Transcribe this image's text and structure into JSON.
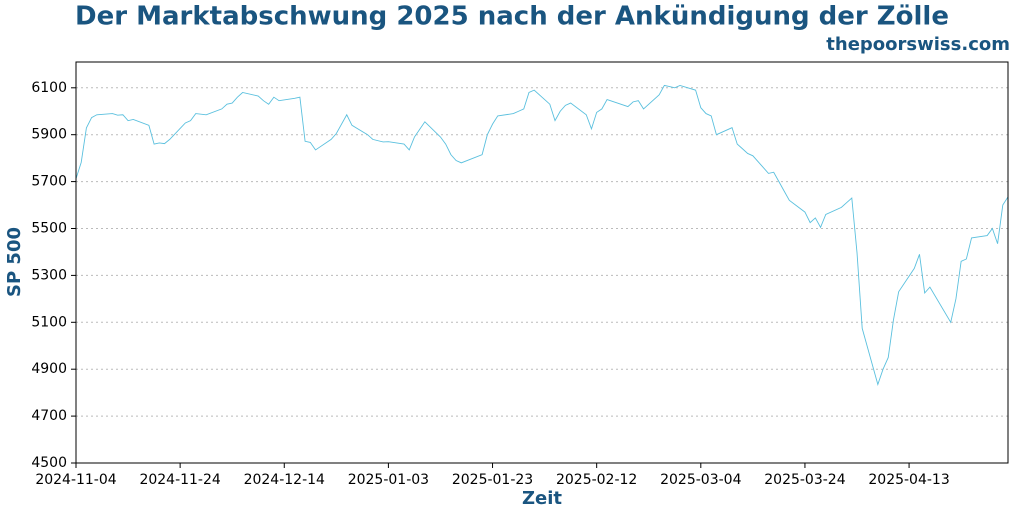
{
  "chart_data": {
    "type": "line",
    "title": "Der Marktabschwung 2025 nach der Ankündigung der Zölle",
    "annotation": "thepoorswiss.com",
    "xlabel": "Zeit",
    "ylabel": "SP 500",
    "color": "#5bc0de",
    "x": [
      "2024-11-04",
      "2024-11-05",
      "2024-11-06",
      "2024-11-07",
      "2024-11-08",
      "2024-11-11",
      "2024-11-12",
      "2024-11-13",
      "2024-11-14",
      "2024-11-15",
      "2024-11-18",
      "2024-11-19",
      "2024-11-20",
      "2024-11-21",
      "2024-11-22",
      "2024-11-25",
      "2024-11-26",
      "2024-11-27",
      "2024-11-29",
      "2024-12-02",
      "2024-12-03",
      "2024-12-04",
      "2024-12-05",
      "2024-12-06",
      "2024-12-09",
      "2024-12-10",
      "2024-12-11",
      "2024-12-12",
      "2024-12-13",
      "2024-12-16",
      "2024-12-17",
      "2024-12-18",
      "2024-12-19",
      "2024-12-20",
      "2024-12-23",
      "2024-12-24",
      "2024-12-26",
      "2024-12-27",
      "2024-12-30",
      "2024-12-31",
      "2025-01-02",
      "2025-01-03",
      "2025-01-06",
      "2025-01-07",
      "2025-01-08",
      "2025-01-10",
      "2025-01-13",
      "2025-01-14",
      "2025-01-15",
      "2025-01-16",
      "2025-01-17",
      "2025-01-21",
      "2025-01-22",
      "2025-01-23",
      "2025-01-24",
      "2025-01-27",
      "2025-01-28",
      "2025-01-29",
      "2025-01-30",
      "2025-01-31",
      "2025-02-03",
      "2025-02-04",
      "2025-02-05",
      "2025-02-06",
      "2025-02-07",
      "2025-02-10",
      "2025-02-11",
      "2025-02-12",
      "2025-02-13",
      "2025-02-14",
      "2025-02-18",
      "2025-02-19",
      "2025-02-20",
      "2025-02-21",
      "2025-02-24",
      "2025-02-25",
      "2025-02-26",
      "2025-02-27",
      "2025-02-28",
      "2025-03-03",
      "2025-03-04",
      "2025-03-05",
      "2025-03-06",
      "2025-03-07",
      "2025-03-10",
      "2025-03-11",
      "2025-03-12",
      "2025-03-13",
      "2025-03-14",
      "2025-03-17",
      "2025-03-18",
      "2025-03-19",
      "2025-03-20",
      "2025-03-21",
      "2025-03-24",
      "2025-03-25",
      "2025-03-26",
      "2025-03-27",
      "2025-03-28",
      "2025-03-31",
      "2025-04-01",
      "2025-04-02",
      "2025-04-03",
      "2025-04-04",
      "2025-04-07",
      "2025-04-08",
      "2025-04-09",
      "2025-04-10",
      "2025-04-11",
      "2025-04-14",
      "2025-04-15",
      "2025-04-16",
      "2025-04-17",
      "2025-04-21",
      "2025-04-22",
      "2025-04-23",
      "2025-04-24",
      "2025-04-25",
      "2025-04-28",
      "2025-04-29",
      "2025-04-30",
      "2025-05-01",
      "2025-05-02"
    ],
    "values": [
      5712,
      5782,
      5929,
      5973,
      5985,
      5990,
      5983,
      5985,
      5960,
      5965,
      5940,
      5860,
      5865,
      5862,
      5880,
      5950,
      5960,
      5990,
      5985,
      6010,
      6030,
      6035,
      6060,
      6080,
      6065,
      6045,
      6030,
      6060,
      6045,
      6055,
      6060,
      5872,
      5867,
      5835,
      5880,
      5905,
      5985,
      5940,
      5900,
      5880,
      5869,
      5870,
      5860,
      5835,
      5890,
      5955,
      5890,
      5860,
      5815,
      5790,
      5780,
      5815,
      5900,
      5945,
      5980,
      5990,
      6000,
      6010,
      6080,
      6090,
      6030,
      5960,
      6000,
      6025,
      6035,
      5985,
      5925,
      5995,
      6010,
      6050,
      6020,
      6040,
      6045,
      6010,
      6070,
      6110,
      6105,
      6100,
      6110,
      6090,
      6015,
      5990,
      5980,
      5900,
      5930,
      5860,
      5840,
      5820,
      5810,
      5735,
      5740,
      5700,
      5660,
      5620,
      5570,
      5525,
      5545,
      5505,
      5560,
      5590,
      5610,
      5630,
      5397,
      5074,
      4835,
      4900,
      4950,
      5110,
      5230,
      5330,
      5390,
      5225,
      5250,
      5100,
      5200,
      5360,
      5370,
      5460,
      5470,
      5500,
      5435,
      5600,
      5635
    ],
    "xlim": [
      "2024-11-04",
      "2025-05-02"
    ],
    "xticks": [
      "2024-11-04",
      "2024-11-24",
      "2024-12-14",
      "2025-01-03",
      "2025-01-23",
      "2025-02-12",
      "2025-03-04",
      "2025-03-24",
      "2025-04-13"
    ],
    "ylim": [
      4500,
      6210
    ],
    "yticks": [
      4500,
      4700,
      4900,
      5100,
      5300,
      5500,
      5700,
      5900,
      6100
    ],
    "grid": true
  }
}
